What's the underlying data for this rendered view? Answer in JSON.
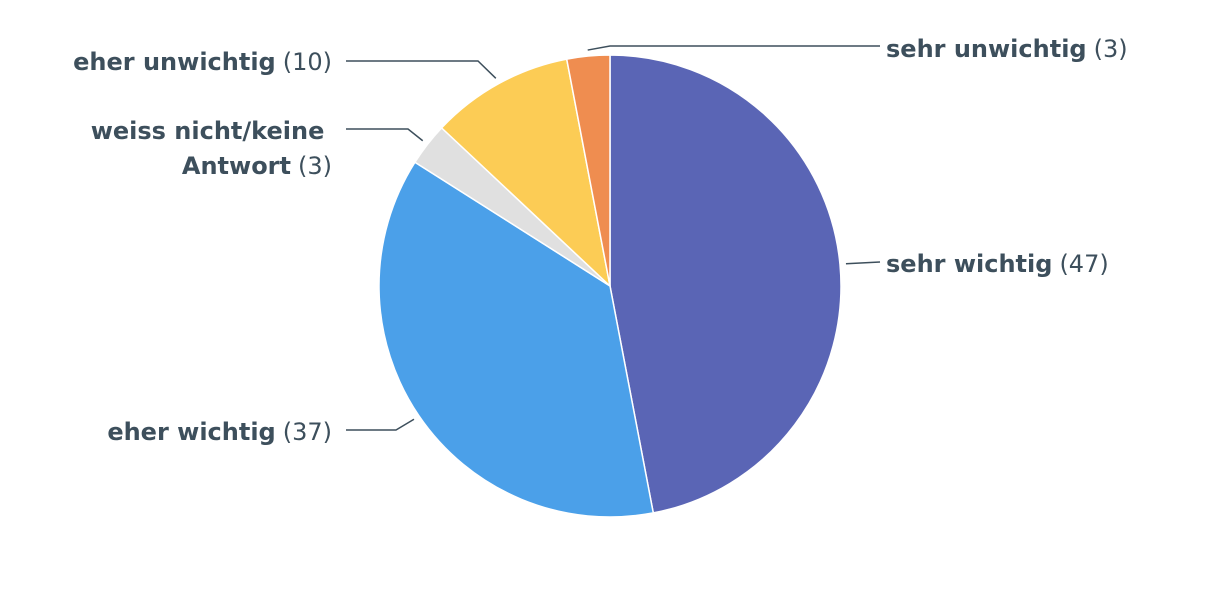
{
  "chart_data": {
    "type": "pie",
    "slices": [
      {
        "label": "sehr wichtig",
        "value": 47,
        "value_label": "(47)",
        "color": "#5a65b5"
      },
      {
        "label": "eher wichtig",
        "value": 37,
        "value_label": "(37)",
        "color": "#4ba0e9"
      },
      {
        "label": "weiss nicht/keine Antwort",
        "label_lines": [
          "weiss nicht/keine",
          "Antwort"
        ],
        "value": 3,
        "value_label": "(3)",
        "color": "#e0e0e0"
      },
      {
        "label": "eher unwichtig",
        "value": 10,
        "value_label": "(10)",
        "color": "#fccc55"
      },
      {
        "label": "sehr unwichtig",
        "value": 3,
        "value_label": "(3)",
        "color": "#ef8d50"
      }
    ],
    "start": "12 o'clock",
    "direction": "clockwise",
    "labels": "outside with leader lines",
    "legend": "none"
  }
}
